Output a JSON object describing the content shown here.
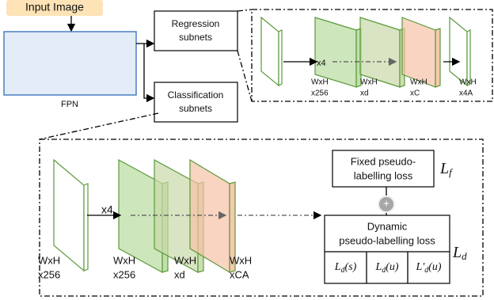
{
  "input_image": "Input Image",
  "fpn": "FPN",
  "regression_box": [
    "Regression",
    "subnets"
  ],
  "classification_box": [
    "Classification",
    "subnets"
  ],
  "regression_head": {
    "repeat": "x4",
    "layers": [
      {
        "size": "WxH",
        "channels": "x256"
      },
      {
        "size": "WxH",
        "channels": "xd"
      },
      {
        "size": "WxH",
        "channels": "xC"
      },
      {
        "size": "WxH",
        "channels": "x4A"
      }
    ]
  },
  "classification_head": {
    "repeat": "x4",
    "input": {
      "size": "WxH",
      "channels": "x256"
    },
    "layers": [
      {
        "size": "WxH",
        "channels": "x256"
      },
      {
        "size": "WxH",
        "channels": "xd"
      },
      {
        "size": "WxH",
        "channels": "xCA"
      }
    ]
  },
  "fixed_loss": {
    "label": [
      "Fixed pseudo-",
      "labelling loss"
    ],
    "symbol": {
      "main": "L",
      "sub": "f"
    }
  },
  "plus": "+",
  "dynamic_loss": {
    "label": [
      "Dynamic",
      "pseudo-labelling loss"
    ],
    "symbol": {
      "main": "L",
      "sub": "d"
    },
    "terms": [
      {
        "main": "L",
        "sub": "d",
        "arg": "(s)"
      },
      {
        "main": "L",
        "sub": "d",
        "arg": "(u)"
      },
      {
        "main": "L'",
        "sub": "d",
        "arg": "(u)"
      }
    ]
  }
}
